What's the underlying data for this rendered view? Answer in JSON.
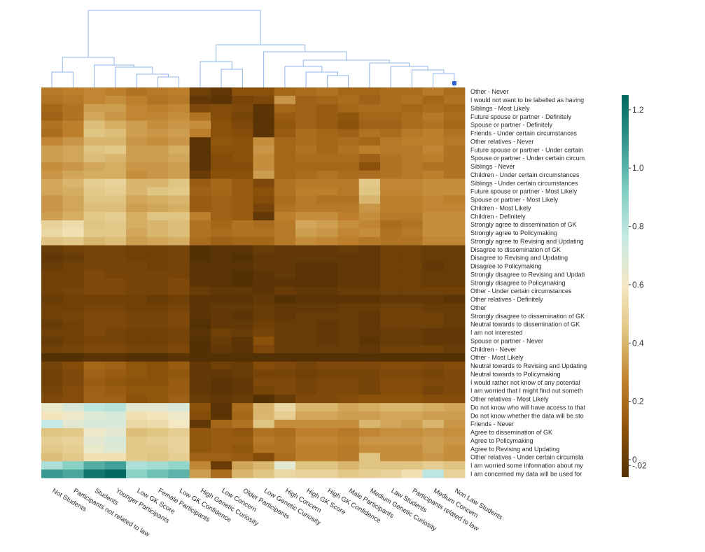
{
  "chart_data": {
    "type": "heatmap",
    "title": "",
    "columns": [
      "Not Students",
      "Participants not related to law",
      "Students",
      "Younger Participants",
      "Low GK Score",
      "Female Participants",
      "Low GK Confidence",
      "High Genetic Curiosity",
      "Low Concern",
      "Older Participants",
      "Low Genetic Curiosity",
      "High Concern",
      "High GK Score",
      "High GK Confidence",
      "Male Participants",
      "Medium Genetic Curiosity",
      "Law Students",
      "Participants related to law",
      "Medium Concern",
      "Non Law Students"
    ],
    "rows": [
      "Other - Never",
      "I would not want to be labelled as having",
      "Siblings - Most Likely",
      "Future spouse or partner - Definitely",
      "Spouse or partner - Definitely",
      "Friends - Under certain circumstances",
      "Other relatives - Never",
      "Future spouse or partner - Under certain",
      "Spouse or partner - Under certain circum",
      "Siblings - Never",
      "Children - Under certain circumstances",
      "Siblings - Under certain circumstances",
      "Future spouse or partner - Most Likely",
      "Spouse or partner - Most Likely",
      "Children - Most Likely",
      "Children - Definitely",
      "Strongly agree to dissemination of GK",
      "Strongly agree to Policymaking",
      "Strongly agree to Revising and Updating",
      "Disagree to dissemination of GK",
      "Disagree to Revising and Updating",
      "Disagree to Policymaking",
      "Strongly disagree to Revising and Updati",
      "Strongly disagree to Policymaking",
      "Other - Under certain circumstances",
      "Other relatives - Definitely",
      "Other",
      "Strongly disagree to dissemination of GK",
      "Neutral towards to dissemination of GK",
      "I am not interested",
      "Spouse or partner - Never",
      "Children - Never",
      "Other - Most Likely",
      "Neutral towards to Revising and Updating",
      "Neutral towards to Policymaking",
      "I would rather not know of any potential",
      "I am worried that I might find out someth",
      "Other relatives - Most Likely",
      "Do not know who will have access to that",
      "Do not know whether the data will be sto",
      "Friends - Never",
      "Agree to dissemination of GK",
      "Agree to Policymaking",
      "Agree to Revising and Updating",
      "Other relatives - Under certain circumsta",
      "I am worried some information about my",
      "I am concerned my data will be used for"
    ],
    "values": [
      [
        0.24,
        0.26,
        0.28,
        0.26,
        0.22,
        0.24,
        0.26,
        0.02,
        -0.02,
        0.1,
        0.1,
        0.18,
        0.2,
        0.22,
        0.18,
        0.18,
        0.2,
        0.2,
        0.24,
        0.2
      ],
      [
        0.22,
        0.24,
        0.28,
        0.3,
        0.26,
        0.22,
        0.24,
        -0.02,
        -0.04,
        0.04,
        0.06,
        0.32,
        0.16,
        0.18,
        0.2,
        0.16,
        0.2,
        0.22,
        0.18,
        0.22
      ],
      [
        0.18,
        0.22,
        0.34,
        0.34,
        0.28,
        0.26,
        0.28,
        0.06,
        0.08,
        0.06,
        -0.04,
        0.18,
        0.16,
        0.14,
        0.18,
        0.2,
        0.2,
        0.18,
        0.2,
        0.18
      ],
      [
        0.16,
        0.22,
        0.36,
        0.32,
        0.28,
        0.28,
        0.3,
        0.22,
        0.08,
        0.04,
        -0.04,
        0.14,
        0.16,
        0.14,
        0.12,
        0.18,
        0.18,
        0.2,
        0.24,
        0.2
      ],
      [
        0.22,
        0.26,
        0.42,
        0.38,
        0.34,
        0.3,
        0.32,
        0.3,
        0.1,
        0.06,
        -0.04,
        0.12,
        0.16,
        0.14,
        0.1,
        0.16,
        0.16,
        0.2,
        0.22,
        0.18
      ],
      [
        0.2,
        0.26,
        0.44,
        0.42,
        0.34,
        0.32,
        0.34,
        0.26,
        0.1,
        0.08,
        -0.04,
        0.14,
        0.2,
        0.18,
        0.16,
        0.22,
        0.2,
        0.24,
        0.26,
        0.22
      ],
      [
        0.28,
        0.32,
        0.4,
        0.4,
        0.32,
        0.3,
        0.32,
        -0.04,
        0.12,
        0.1,
        0.3,
        0.18,
        0.2,
        0.18,
        0.2,
        0.18,
        0.24,
        0.26,
        0.26,
        0.24
      ],
      [
        0.34,
        0.36,
        0.44,
        0.46,
        0.34,
        0.34,
        0.38,
        -0.04,
        0.1,
        0.1,
        0.32,
        0.18,
        0.22,
        0.18,
        0.22,
        0.26,
        0.24,
        0.24,
        0.28,
        0.22
      ],
      [
        0.34,
        0.36,
        0.42,
        0.4,
        0.34,
        0.34,
        0.36,
        -0.04,
        0.08,
        0.1,
        0.3,
        0.18,
        0.2,
        0.2,
        0.2,
        0.16,
        0.22,
        0.24,
        0.26,
        0.22
      ],
      [
        0.3,
        0.32,
        0.36,
        0.38,
        0.32,
        0.32,
        0.34,
        -0.04,
        0.08,
        0.08,
        0.3,
        0.18,
        0.18,
        0.18,
        0.18,
        0.1,
        0.22,
        0.24,
        0.22,
        0.22
      ],
      [
        0.32,
        0.36,
        0.38,
        0.38,
        0.3,
        0.32,
        0.34,
        0.0,
        0.1,
        0.1,
        0.34,
        0.18,
        0.2,
        0.22,
        0.2,
        0.2,
        0.22,
        0.24,
        0.26,
        0.22
      ],
      [
        0.36,
        0.4,
        0.48,
        0.5,
        0.4,
        0.4,
        0.44,
        0.14,
        0.18,
        0.14,
        0.06,
        0.22,
        0.24,
        0.24,
        0.24,
        0.46,
        0.28,
        0.28,
        0.3,
        0.3
      ],
      [
        0.36,
        0.38,
        0.46,
        0.48,
        0.4,
        0.44,
        0.46,
        0.16,
        0.18,
        0.14,
        0.1,
        0.22,
        0.26,
        0.26,
        0.24,
        0.44,
        0.28,
        0.28,
        0.3,
        0.3
      ],
      [
        0.32,
        0.36,
        0.44,
        0.44,
        0.36,
        0.38,
        0.4,
        0.14,
        0.16,
        0.14,
        0.08,
        0.2,
        0.24,
        0.22,
        0.22,
        0.4,
        0.26,
        0.26,
        0.28,
        0.26
      ],
      [
        0.32,
        0.36,
        0.42,
        0.42,
        0.34,
        0.36,
        0.38,
        0.14,
        0.16,
        0.14,
        0.04,
        0.22,
        0.24,
        0.24,
        0.24,
        0.32,
        0.26,
        0.26,
        0.28,
        0.28
      ],
      [
        0.34,
        0.38,
        0.46,
        0.48,
        0.38,
        0.44,
        0.44,
        0.26,
        0.16,
        0.14,
        -0.02,
        0.26,
        0.3,
        0.3,
        0.26,
        0.3,
        0.24,
        0.24,
        0.3,
        0.3
      ],
      [
        0.5,
        0.54,
        0.44,
        0.46,
        0.38,
        0.4,
        0.42,
        0.22,
        0.18,
        0.22,
        0.2,
        0.24,
        0.36,
        0.34,
        0.3,
        0.28,
        0.2,
        0.22,
        0.3,
        0.3
      ],
      [
        0.52,
        0.56,
        0.46,
        0.46,
        0.36,
        0.4,
        0.42,
        0.22,
        0.2,
        0.22,
        0.22,
        0.24,
        0.34,
        0.32,
        0.28,
        0.3,
        0.22,
        0.24,
        0.3,
        0.3
      ],
      [
        0.44,
        0.46,
        0.4,
        0.42,
        0.34,
        0.36,
        0.38,
        0.2,
        0.16,
        0.18,
        0.18,
        0.24,
        0.3,
        0.28,
        0.26,
        0.24,
        0.22,
        0.22,
        0.28,
        0.28
      ],
      [
        0.0,
        0.02,
        0.04,
        0.04,
        0.02,
        0.02,
        0.04,
        -0.06,
        -0.04,
        -0.04,
        0.0,
        -0.02,
        -0.02,
        -0.02,
        0.0,
        -0.02,
        0.02,
        0.02,
        0.0,
        0.0
      ],
      [
        -0.02,
        0.0,
        0.04,
        0.04,
        0.02,
        0.02,
        0.04,
        -0.06,
        -0.04,
        -0.06,
        -0.02,
        -0.02,
        -0.02,
        -0.02,
        -0.02,
        -0.02,
        0.02,
        0.02,
        0.0,
        0.0
      ],
      [
        0.0,
        0.02,
        0.04,
        0.04,
        0.04,
        0.02,
        0.04,
        -0.04,
        -0.04,
        -0.04,
        -0.02,
        -0.02,
        -0.04,
        -0.04,
        -0.02,
        -0.02,
        0.02,
        0.02,
        -0.02,
        0.0
      ],
      [
        0.02,
        0.02,
        0.06,
        0.04,
        0.04,
        0.04,
        0.04,
        -0.04,
        -0.04,
        -0.06,
        -0.04,
        -0.02,
        -0.04,
        -0.04,
        -0.02,
        -0.02,
        0.02,
        0.02,
        0.0,
        0.0
      ],
      [
        0.02,
        0.02,
        0.06,
        0.06,
        0.04,
        0.04,
        0.06,
        -0.04,
        -0.04,
        -0.06,
        -0.04,
        -0.04,
        -0.04,
        -0.04,
        -0.02,
        -0.02,
        0.02,
        0.02,
        0.0,
        0.0
      ],
      [
        0.02,
        0.04,
        0.06,
        0.06,
        0.04,
        0.04,
        0.06,
        0.0,
        -0.02,
        -0.02,
        -0.04,
        0.0,
        -0.02,
        -0.02,
        0.0,
        0.0,
        0.02,
        0.02,
        0.02,
        0.02
      ],
      [
        0.0,
        0.02,
        0.02,
        0.02,
        0.02,
        0.0,
        0.02,
        -0.04,
        -0.04,
        -0.04,
        -0.02,
        -0.06,
        -0.04,
        -0.04,
        -0.04,
        -0.04,
        -0.02,
        -0.02,
        -0.02,
        -0.04
      ],
      [
        0.02,
        0.02,
        0.04,
        0.04,
        0.02,
        0.02,
        0.04,
        -0.04,
        -0.02,
        -0.02,
        0.0,
        -0.02,
        -0.02,
        -0.02,
        0.0,
        0.0,
        0.02,
        0.02,
        0.0,
        0.0
      ],
      [
        0.02,
        0.04,
        0.06,
        0.06,
        0.04,
        0.04,
        0.06,
        -0.04,
        -0.02,
        -0.04,
        0.0,
        -0.02,
        0.0,
        0.0,
        0.0,
        -0.02,
        0.02,
        0.02,
        0.02,
        0.0
      ],
      [
        0.0,
        0.02,
        0.06,
        0.06,
        0.04,
        0.04,
        0.06,
        -0.06,
        -0.02,
        -0.02,
        0.02,
        0.0,
        0.0,
        -0.02,
        0.0,
        -0.02,
        0.02,
        0.02,
        0.02,
        0.0
      ],
      [
        0.02,
        0.02,
        0.06,
        0.04,
        0.02,
        0.02,
        0.04,
        -0.04,
        0.02,
        0.0,
        0.04,
        0.0,
        0.0,
        -0.02,
        0.0,
        -0.02,
        0.0,
        0.0,
        -0.02,
        -0.02
      ],
      [
        0.0,
        0.02,
        0.04,
        0.04,
        0.02,
        0.02,
        0.04,
        -0.06,
        0.0,
        -0.04,
        0.1,
        0.0,
        0.0,
        -0.02,
        0.0,
        -0.04,
        0.0,
        0.0,
        -0.02,
        -0.02
      ],
      [
        0.02,
        0.04,
        0.06,
        0.06,
        0.04,
        0.04,
        0.06,
        -0.06,
        -0.02,
        -0.04,
        0.06,
        0.0,
        0.0,
        0.0,
        0.0,
        -0.02,
        0.02,
        0.02,
        0.02,
        0.0
      ],
      [
        -0.06,
        -0.06,
        -0.04,
        -0.04,
        -0.06,
        -0.06,
        -0.04,
        -0.06,
        -0.06,
        -0.06,
        -0.06,
        -0.06,
        -0.06,
        -0.06,
        -0.06,
        -0.06,
        -0.06,
        -0.06,
        -0.06,
        -0.06
      ],
      [
        0.04,
        0.08,
        0.18,
        0.16,
        0.12,
        0.1,
        0.14,
        -0.02,
        0.02,
        0.0,
        0.08,
        0.06,
        0.04,
        0.06,
        0.06,
        0.06,
        0.08,
        0.08,
        0.06,
        0.08
      ],
      [
        0.02,
        0.06,
        0.16,
        0.14,
        0.12,
        0.1,
        0.12,
        -0.02,
        -0.02,
        0.0,
        0.04,
        0.04,
        0.02,
        0.04,
        0.04,
        0.04,
        0.06,
        0.06,
        0.04,
        0.06
      ],
      [
        0.02,
        0.06,
        0.14,
        0.12,
        0.1,
        0.1,
        0.14,
        -0.02,
        -0.04,
        -0.02,
        0.06,
        0.06,
        0.04,
        0.06,
        0.06,
        0.04,
        0.08,
        0.08,
        0.06,
        0.06
      ],
      [
        0.04,
        0.08,
        0.16,
        0.14,
        0.12,
        0.12,
        0.14,
        -0.02,
        -0.04,
        -0.02,
        0.04,
        0.06,
        0.04,
        0.06,
        0.06,
        0.04,
        0.08,
        0.08,
        0.04,
        0.06
      ],
      [
        0.06,
        0.08,
        0.16,
        0.16,
        0.1,
        0.12,
        0.16,
        0.0,
        -0.02,
        0.0,
        -0.06,
        0.0,
        0.06,
        0.06,
        0.08,
        0.1,
        0.1,
        0.1,
        0.08,
        0.08
      ],
      [
        0.64,
        0.7,
        0.78,
        0.8,
        0.66,
        0.66,
        0.7,
        0.1,
        -0.04,
        0.2,
        0.4,
        0.52,
        0.4,
        0.4,
        0.36,
        0.38,
        0.4,
        0.4,
        0.38,
        0.36
      ],
      [
        0.58,
        0.62,
        0.68,
        0.7,
        0.56,
        0.58,
        0.62,
        0.08,
        -0.04,
        0.18,
        0.4,
        0.48,
        0.36,
        0.36,
        0.34,
        0.34,
        0.36,
        0.36,
        0.34,
        0.34
      ],
      [
        0.76,
        0.66,
        0.7,
        0.7,
        0.52,
        0.54,
        0.6,
        -0.02,
        0.18,
        0.22,
        0.44,
        0.3,
        0.3,
        0.3,
        0.3,
        0.4,
        0.36,
        0.34,
        0.4,
        0.32
      ],
      [
        0.44,
        0.46,
        0.62,
        0.66,
        0.42,
        0.44,
        0.48,
        0.12,
        0.14,
        0.12,
        0.22,
        0.2,
        0.26,
        0.26,
        0.24,
        0.28,
        0.3,
        0.3,
        0.32,
        0.3
      ],
      [
        0.48,
        0.5,
        0.66,
        0.7,
        0.46,
        0.48,
        0.5,
        0.12,
        0.14,
        0.14,
        0.24,
        0.22,
        0.28,
        0.28,
        0.26,
        0.32,
        0.32,
        0.32,
        0.34,
        0.32
      ],
      [
        0.46,
        0.48,
        0.64,
        0.68,
        0.46,
        0.46,
        0.5,
        0.12,
        0.14,
        0.12,
        0.22,
        0.22,
        0.26,
        0.26,
        0.24,
        0.3,
        0.3,
        0.3,
        0.34,
        0.3
      ],
      [
        0.42,
        0.46,
        0.56,
        0.56,
        0.46,
        0.44,
        0.48,
        0.16,
        0.16,
        0.14,
        0.08,
        0.2,
        0.26,
        0.26,
        0.24,
        0.44,
        0.3,
        0.3,
        0.32,
        0.3
      ],
      [
        0.82,
        0.9,
        1.02,
        1.06,
        0.82,
        0.84,
        0.88,
        0.28,
        0.0,
        0.36,
        0.4,
        0.66,
        0.44,
        0.44,
        0.4,
        0.44,
        0.44,
        0.44,
        0.48,
        0.44
      ],
      [
        1.08,
        1.04,
        1.2,
        1.24,
        0.9,
        0.96,
        1.0,
        0.34,
        0.2,
        0.4,
        0.44,
        0.52,
        0.5,
        0.5,
        0.46,
        0.48,
        0.5,
        0.56,
        0.78,
        0.5
      ]
    ],
    "colorbar": {
      "ticks": [
        1.2,
        1.0,
        0.8,
        0.6,
        0.4,
        0.2,
        0,
        -0.02
      ],
      "tick_labels": [
        "1.2",
        "1.0",
        "0.8",
        "0.6",
        "0.4",
        "0.2",
        "0",
        "-.02"
      ],
      "range": [
        -0.06,
        1.25
      ],
      "colorscale": [
        "#543005",
        "#8c510a",
        "#bf812d",
        "#dfc27d",
        "#f6e8c3",
        "#c7eae5",
        "#80cdc1",
        "#35978f",
        "#01665e"
      ]
    },
    "dendrogram_color": "#8fb8e8"
  }
}
